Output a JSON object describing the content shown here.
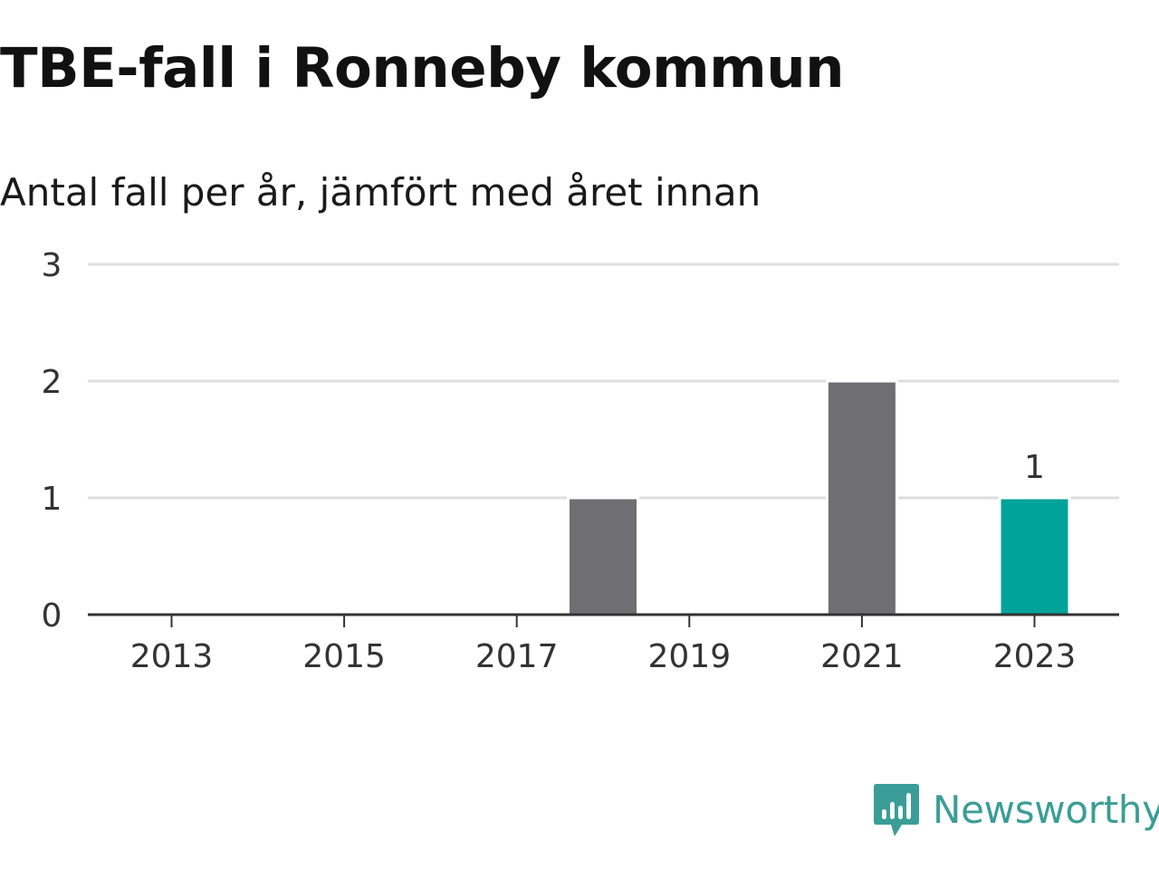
{
  "header": {
    "title": "TBE-fall i Ronneby kommun",
    "subtitle": "Antal fall per år, jämfört med året innan"
  },
  "brand": {
    "name": "Newsworthy",
    "color": "#3a9e96",
    "icon": "newsworthy-bar-chart-icon"
  },
  "chart_data": {
    "type": "bar",
    "categories": [
      "2013",
      "2014",
      "2015",
      "2016",
      "2017",
      "2018",
      "2019",
      "2020",
      "2021",
      "2022",
      "2023"
    ],
    "values": [
      0,
      0,
      0,
      0,
      0,
      1,
      0,
      0,
      2,
      0,
      1
    ],
    "xticks": [
      "2013",
      "2015",
      "2017",
      "2019",
      "2021",
      "2023"
    ],
    "yticks": [
      0,
      1,
      2,
      3
    ],
    "ylim": [
      0,
      3
    ],
    "grid": true,
    "colors": {
      "default": "#6e6e73",
      "highlight": "#00a39a",
      "grid": "#dedede",
      "axis": "#333333"
    },
    "highlight_category": "2023",
    "data_labels": [
      {
        "category": "2023",
        "text": "1"
      }
    ]
  }
}
